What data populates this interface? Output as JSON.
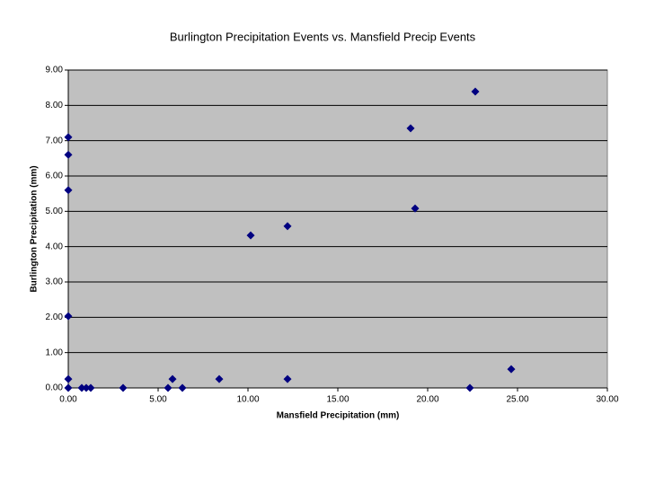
{
  "chart_data": {
    "type": "scatter",
    "title": "Burlington Precipitation Events vs. Mansfield Precip Events",
    "x_label": "Mansfield Precipitation (mm)",
    "y_label": "Burlington Precipitation (mm)",
    "series": [
      {
        "color": "#000080",
        "x": [
          0,
          0,
          0,
          0,
          0,
          0,
          0.75,
          1.0,
          1.25,
          3.05,
          5.55,
          5.8,
          6.35,
          8.4,
          10.15,
          12.2,
          12.2,
          19.05,
          19.3,
          22.65,
          22.35,
          24.65
        ],
        "values": [
          7.1,
          6.6,
          5.6,
          2.03,
          0.25,
          0,
          0,
          0,
          0,
          0,
          0,
          0.25,
          0,
          0.25,
          4.32,
          4.58,
          0.25,
          7.35,
          5.08,
          8.39,
          0,
          0.53
        ]
      }
    ],
    "xlim": [
      0,
      30
    ],
    "xticks": [
      {
        "value": 0,
        "label": "0.00"
      },
      {
        "value": 5,
        "label": "5.00"
      },
      {
        "value": 10,
        "label": "10.00"
      },
      {
        "value": 15,
        "label": "15.00"
      },
      {
        "value": 20,
        "label": "20.00"
      },
      {
        "value": 25,
        "label": "25.00"
      },
      {
        "value": 30,
        "label": "30.00"
      }
    ],
    "ylim": [
      0,
      9
    ],
    "yticks": [
      {
        "value": 0,
        "label": "0.00"
      },
      {
        "value": 1,
        "label": "1.00"
      },
      {
        "value": 2,
        "label": "2.00"
      },
      {
        "value": 3,
        "label": "3.00"
      },
      {
        "value": 4,
        "label": "4.00"
      },
      {
        "value": 5,
        "label": "5.00"
      },
      {
        "value": 6,
        "label": "6.00"
      },
      {
        "value": 7,
        "label": "7.00"
      },
      {
        "value": 8,
        "label": "8.00"
      },
      {
        "value": 9,
        "label": "9.00"
      }
    ],
    "grid": true
  }
}
